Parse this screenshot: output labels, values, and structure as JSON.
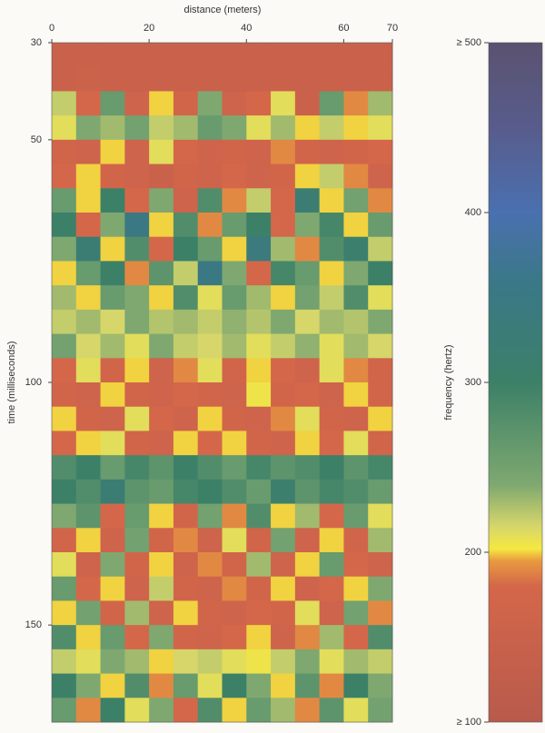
{
  "chart_data": {
    "type": "heatmap",
    "xlabel": "distance (meters)",
    "ylabel": "time (milliseconds)",
    "colorbar_label": "frequency (hertz)",
    "xlim": [
      0,
      70
    ],
    "xticks": [
      0,
      20,
      40,
      60,
      70
    ],
    "ylim": [
      30,
      170
    ],
    "yticks": [
      30,
      50,
      100,
      150
    ],
    "y_inverted": true,
    "clim": [
      100,
      500
    ],
    "cticks": [
      {
        "value": 500,
        "label": "≥ 500"
      },
      400,
      300,
      200,
      {
        "value": 100,
        "label": "≥ 100"
      }
    ],
    "colorscale": [
      [
        100,
        "#b85a4c"
      ],
      [
        180,
        "#d4674a"
      ],
      [
        195,
        "#e89a40"
      ],
      [
        202,
        "#f5e840"
      ],
      [
        215,
        "#d6d66a"
      ],
      [
        240,
        "#7ea870"
      ],
      [
        300,
        "#3c8068"
      ],
      [
        360,
        "#3a7888"
      ],
      [
        400,
        "#4a70b0"
      ],
      [
        450,
        "#585c8c"
      ],
      [
        500,
        "#5a5270"
      ]
    ],
    "xbins": [
      0,
      5,
      10,
      15,
      20,
      25,
      30,
      35,
      40,
      45,
      50,
      55,
      60,
      65,
      70
    ],
    "ybins": [
      30,
      35,
      40,
      45,
      50,
      55,
      60,
      65,
      70,
      75,
      80,
      85,
      90,
      95,
      100,
      105,
      110,
      115,
      120,
      125,
      130,
      135,
      140,
      145,
      150,
      155,
      160,
      165,
      170
    ],
    "values": [
      [
        150,
        150,
        150,
        150,
        150,
        150,
        150,
        150,
        150,
        150,
        150,
        150,
        150,
        150
      ],
      [
        150,
        155,
        150,
        150,
        150,
        150,
        150,
        150,
        150,
        150,
        150,
        150,
        150,
        150
      ],
      [
        220,
        180,
        260,
        160,
        200,
        170,
        240,
        160,
        180,
        210,
        150,
        260,
        190,
        230
      ],
      [
        210,
        240,
        230,
        250,
        220,
        230,
        260,
        240,
        210,
        230,
        200,
        220,
        200,
        210
      ],
      [
        170,
        160,
        200,
        160,
        210,
        180,
        160,
        170,
        160,
        190,
        170,
        160,
        170,
        180
      ],
      [
        180,
        200,
        170,
        160,
        150,
        170,
        160,
        180,
        160,
        170,
        200,
        220,
        190,
        160
      ],
      [
        260,
        200,
        300,
        180,
        240,
        160,
        280,
        190,
        220,
        180,
        320,
        200,
        250,
        190
      ],
      [
        300,
        180,
        240,
        350,
        200,
        280,
        190,
        260,
        300,
        180,
        240,
        290,
        200,
        260
      ],
      [
        240,
        320,
        200,
        280,
        180,
        300,
        260,
        200,
        340,
        230,
        190,
        280,
        310,
        220
      ],
      [
        200,
        260,
        300,
        190,
        270,
        220,
        350,
        240,
        180,
        290,
        260,
        200,
        240,
        300
      ],
      [
        230,
        200,
        260,
        240,
        200,
        280,
        210,
        260,
        230,
        200,
        250,
        220,
        280,
        210
      ],
      [
        220,
        230,
        215,
        240,
        225,
        230,
        220,
        235,
        225,
        240,
        215,
        230,
        225,
        240
      ],
      [
        250,
        215,
        230,
        210,
        240,
        220,
        215,
        230,
        210,
        220,
        235,
        210,
        230,
        215
      ],
      [
        180,
        210,
        170,
        200,
        160,
        190,
        210,
        170,
        200,
        180,
        160,
        210,
        190,
        170
      ],
      [
        170,
        160,
        200,
        170,
        160,
        180,
        170,
        160,
        205,
        170,
        180,
        160,
        200,
        170
      ],
      [
        200,
        170,
        160,
        210,
        180,
        160,
        200,
        170,
        160,
        190,
        210,
        170,
        160,
        200
      ],
      [
        180,
        200,
        210,
        170,
        160,
        200,
        180,
        200,
        170,
        160,
        200,
        180,
        210,
        170
      ],
      [
        280,
        300,
        260,
        290,
        270,
        300,
        280,
        260,
        290,
        270,
        280,
        300,
        270,
        290
      ],
      [
        300,
        280,
        320,
        270,
        260,
        290,
        300,
        280,
        260,
        310,
        270,
        290,
        280,
        260
      ],
      [
        240,
        270,
        180,
        260,
        200,
        170,
        250,
        190,
        280,
        200,
        230,
        180,
        260,
        210
      ],
      [
        170,
        200,
        160,
        250,
        170,
        190,
        160,
        210,
        170,
        250,
        160,
        200,
        170,
        230
      ],
      [
        210,
        160,
        240,
        170,
        200,
        160,
        190,
        170,
        230,
        160,
        200,
        260,
        180,
        160
      ],
      [
        260,
        180,
        200,
        160,
        220,
        170,
        160,
        190,
        170,
        200,
        160,
        180,
        200,
        240
      ],
      [
        200,
        250,
        170,
        230,
        160,
        200,
        170,
        160,
        180,
        170,
        210,
        160,
        250,
        190
      ],
      [
        280,
        200,
        260,
        180,
        240,
        170,
        160,
        180,
        200,
        160,
        190,
        230,
        180,
        280
      ],
      [
        220,
        210,
        240,
        230,
        200,
        215,
        220,
        210,
        205,
        220,
        240,
        210,
        230,
        220
      ],
      [
        300,
        240,
        200,
        280,
        190,
        260,
        210,
        300,
        240,
        200,
        270,
        190,
        300,
        240
      ],
      [
        260,
        190,
        300,
        210,
        240,
        180,
        280,
        200,
        260,
        230,
        190,
        270,
        210,
        250
      ]
    ]
  }
}
